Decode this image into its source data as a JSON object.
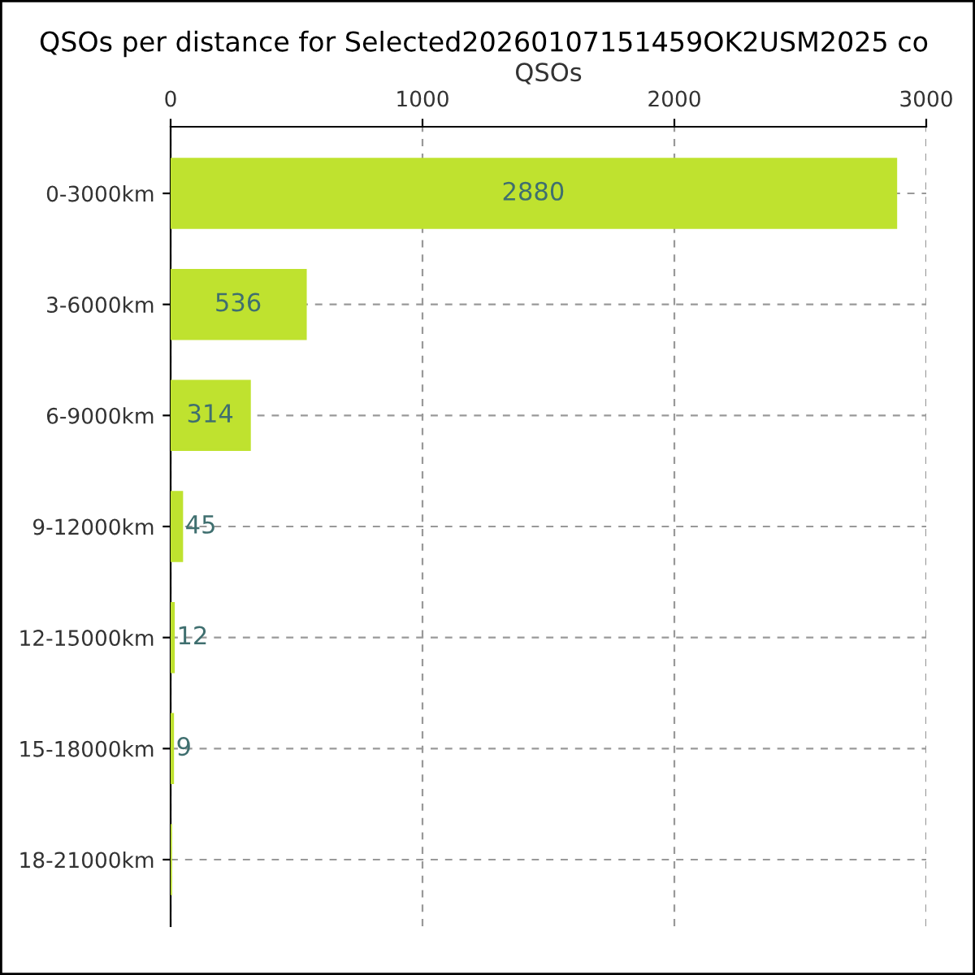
{
  "chart_data": {
    "type": "bar",
    "orientation": "horizontal",
    "title": "QSOs per distance for Selected20260107151459OK2USM2025 co",
    "xlabel": "QSOs",
    "categories": [
      "0-3000km",
      "3-6000km",
      "6-9000km",
      "9-12000km",
      "12-15000km",
      "15-18000km",
      "18-21000km"
    ],
    "values": [
      2880,
      536,
      314,
      45,
      12,
      9,
      1
    ],
    "value_labels": [
      "2880",
      "536",
      "314",
      "45",
      "12",
      "9",
      null
    ],
    "color": "#bfe22f",
    "xlim": [
      0,
      3000
    ],
    "xticks": [
      0,
      1000,
      2000,
      3000
    ],
    "grid": true
  }
}
